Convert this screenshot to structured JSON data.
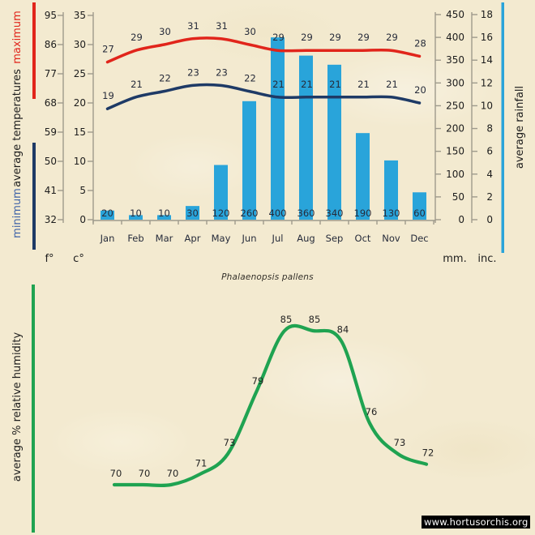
{
  "page": {
    "title": "Phalaenopsis pallens",
    "watermark": "www.hortusorchis.org"
  },
  "units": {
    "fahrenheit": "f°",
    "celsius": "c°",
    "mm": "mm.",
    "inches": "inc."
  },
  "side_labels": {
    "maximum": "maximum",
    "average_temperatures": "average temperatures",
    "minimum": "minimum",
    "average_rainfall": "average rainfall",
    "humidity": "average % relative humidity"
  },
  "colors": {
    "max_red": "#e1251b",
    "min_navy": "#1e3a66",
    "min_text_blue": "#3f63a8",
    "bar_blue": "#29a4da",
    "green": "#1fa351",
    "axis_gray": "#9e9a8c",
    "ink": "#1c1c1c",
    "label_ink": "#262b3a"
  },
  "chart_data": [
    {
      "type": "bar",
      "title": "climate: temperatures and rainfall by month",
      "categories": [
        "Jan",
        "Feb",
        "Mar",
        "Apr",
        "May",
        "Jun",
        "Jul",
        "Aug",
        "Sep",
        "Oct",
        "Nov",
        "Dec"
      ],
      "series": [
        {
          "name": "maximum temperature",
          "type": "line",
          "unit": "°C",
          "color": "#e1251b",
          "values": [
            27,
            29,
            30,
            31,
            31,
            30,
            29,
            29,
            29,
            29,
            29,
            28
          ]
        },
        {
          "name": "minimum temperature",
          "type": "line",
          "unit": "°C",
          "color": "#1e3a66",
          "values": [
            19,
            21,
            22,
            23,
            23,
            22,
            21,
            21,
            21,
            21,
            21,
            20
          ]
        },
        {
          "name": "average rainfall",
          "type": "bar",
          "unit": "mm",
          "color": "#29a4da",
          "values": [
            20,
            10,
            10,
            30,
            120,
            260,
            400,
            360,
            340,
            190,
            130,
            60
          ]
        }
      ],
      "axes": {
        "fahrenheit": {
          "ticks": [
            95,
            86,
            77,
            68,
            59,
            50,
            41,
            32
          ]
        },
        "celsius": {
          "ticks": [
            35,
            30,
            25,
            20,
            15,
            10,
            5,
            0
          ],
          "range": [
            0,
            35
          ]
        },
        "mm": {
          "ticks": [
            450,
            400,
            350,
            300,
            250,
            200,
            150,
            100,
            50,
            0
          ],
          "range": [
            0,
            450
          ]
        },
        "inches": {
          "ticks": [
            18,
            16,
            14,
            12,
            10,
            8,
            6,
            4,
            2,
            0
          ],
          "range": [
            0,
            18
          ]
        }
      },
      "legend_position": "left-and-right-rotated",
      "grid": false
    },
    {
      "type": "line",
      "name": "average % relative humidity",
      "categories": [
        "Jan",
        "Feb",
        "Mar",
        "Apr",
        "May",
        "Jun",
        "Jul",
        "Aug",
        "Sep",
        "Oct",
        "Nov",
        "Dec"
      ],
      "values": [
        70,
        70,
        70,
        71,
        73,
        79,
        85,
        85,
        84,
        76,
        73,
        72
      ],
      "color": "#1fa351",
      "ylabel": "average % relative humidity",
      "grid": false
    }
  ]
}
